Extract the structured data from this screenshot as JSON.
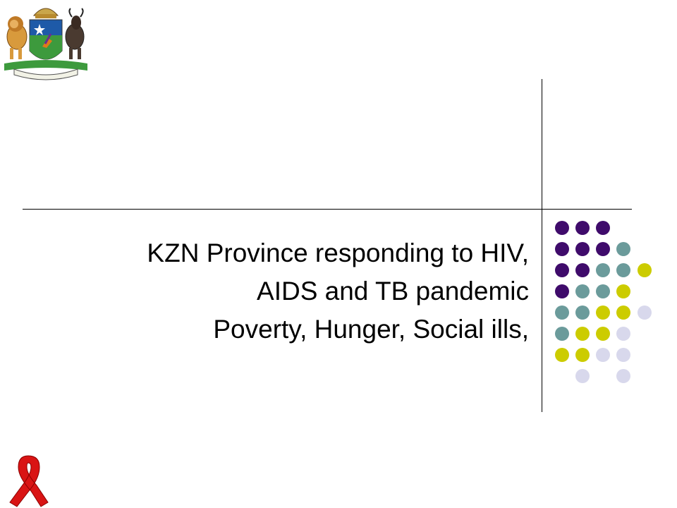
{
  "slide": {
    "title_lines": [
      "KZN Province responding to HIV,",
      "AIDS and TB pandemic",
      "Poverty, Hunger, Social ills,"
    ]
  },
  "decor": {
    "logo": "kzn-coat-of-arms",
    "ribbon": "red-awareness-ribbon",
    "dot_colors": [
      "#3f0b6b",
      "#6b9b9b",
      "#cccc00",
      "#d8d8ec"
    ]
  }
}
